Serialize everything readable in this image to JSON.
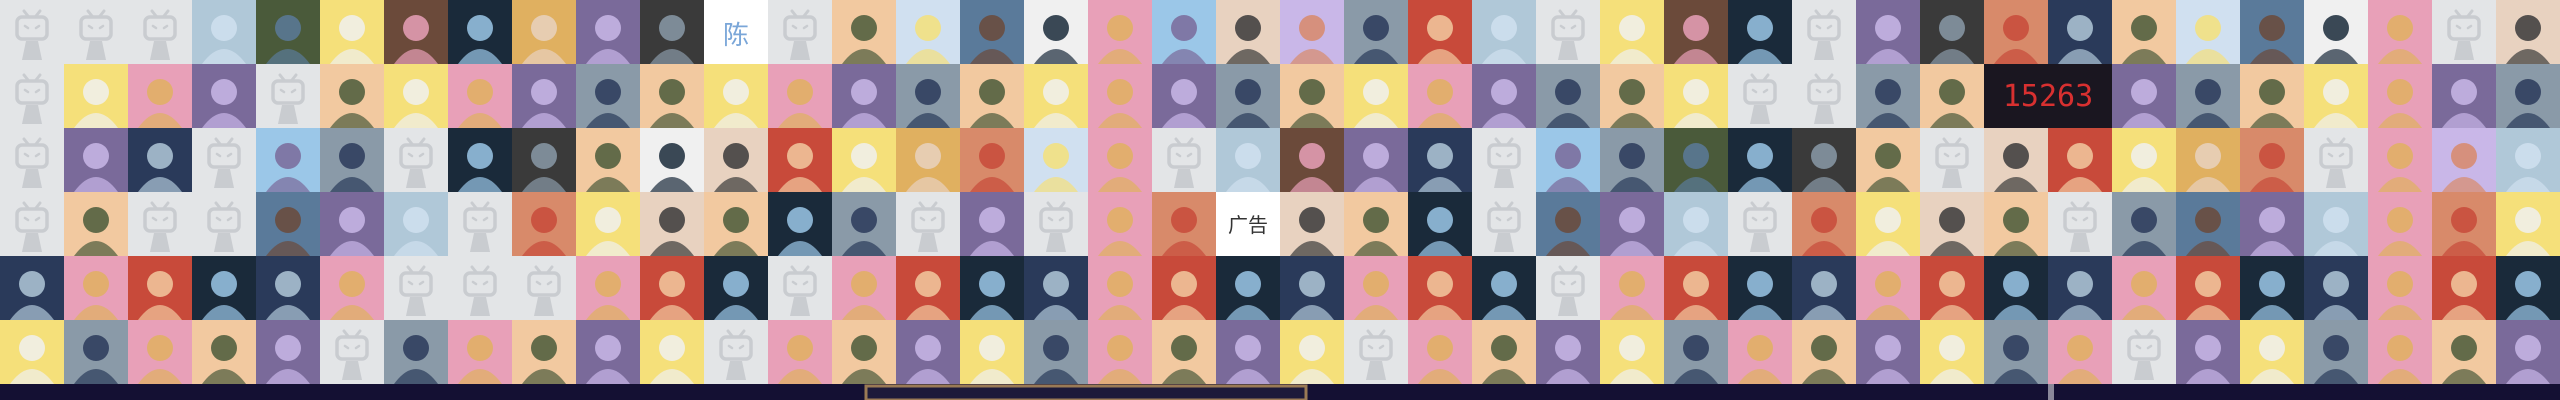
{
  "avatar_texts": [
    "陈",
    "广告",
    "15263"
  ]
}
